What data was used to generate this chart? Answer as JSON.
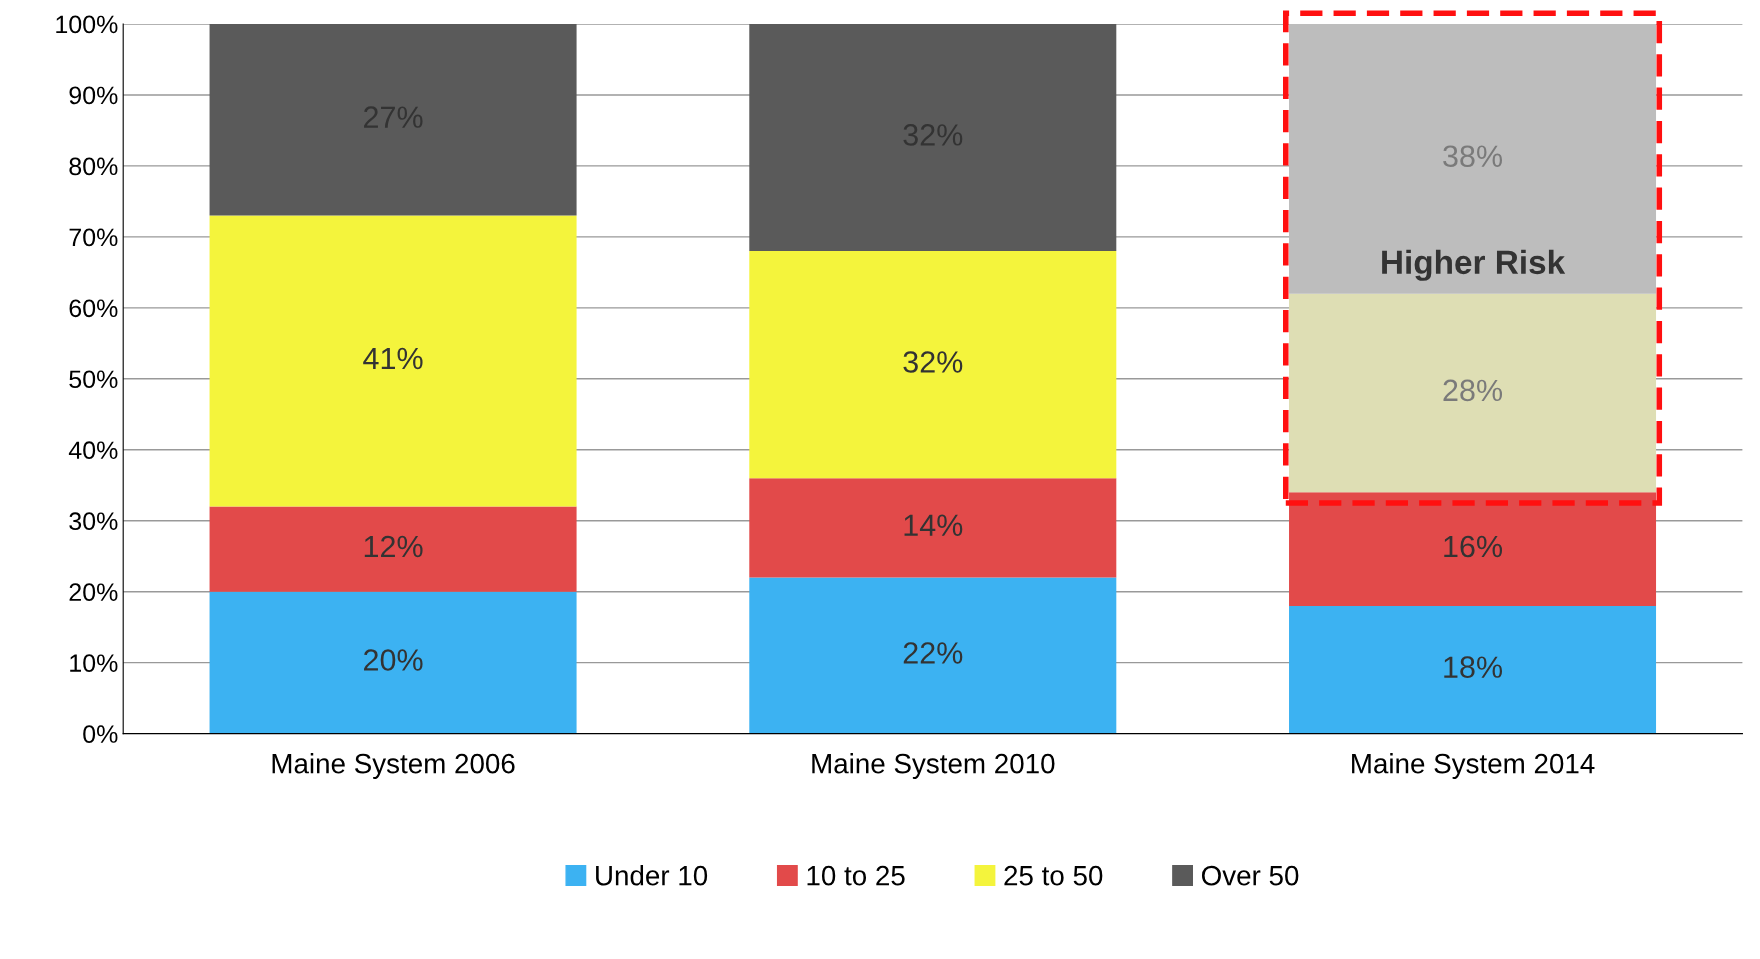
{
  "chart_data": {
    "type": "bar",
    "stacked": true,
    "categories": [
      "Maine System 2006",
      "Maine System 2010",
      "Maine System 2014"
    ],
    "series": [
      {
        "name": "Under 10",
        "color": "#3cb2f2",
        "values": [
          20,
          22,
          18
        ]
      },
      {
        "name": "10 to 25",
        "color": "#e24a4a",
        "values": [
          12,
          14,
          16
        ]
      },
      {
        "name": "25 to 50",
        "color": "#f4f43c",
        "values": [
          41,
          32,
          28
        ],
        "colors": [
          "#f4f43c",
          "#f4f43c",
          "#dedeb4"
        ]
      },
      {
        "name": "Over 50",
        "color": "#5a5a5a",
        "values": [
          27,
          32,
          38
        ],
        "colors": [
          "#5a5a5a",
          "#5a5a5a",
          "#bdbdbd"
        ]
      }
    ],
    "ylim": [
      0,
      100
    ],
    "yticks": [
      {
        "value": 0,
        "label": "0%"
      },
      {
        "value": 10,
        "label": "10%"
      },
      {
        "value": 20,
        "label": "20%"
      },
      {
        "value": 30,
        "label": "30%"
      },
      {
        "value": 40,
        "label": "40%"
      },
      {
        "value": 50,
        "label": "50%"
      },
      {
        "value": 60,
        "label": "60%"
      },
      {
        "value": 70,
        "label": "70%"
      },
      {
        "value": 80,
        "label": "80%"
      },
      {
        "value": 90,
        "label": "90%"
      },
      {
        "value": 100,
        "label": "100%"
      }
    ],
    "value_labels": [
      [
        "20%",
        "22%",
        "18%"
      ],
      [
        "12%",
        "14%",
        "16%"
      ],
      [
        "41%",
        "32%",
        "28%"
      ],
      [
        "27%",
        "32%",
        "38%"
      ]
    ],
    "annotations": [
      "Higher Risk"
    ],
    "grid": "y",
    "legend": "bottom"
  }
}
